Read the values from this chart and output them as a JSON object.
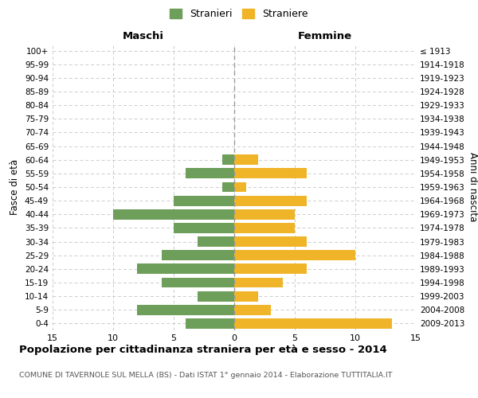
{
  "age_groups": [
    "100+",
    "95-99",
    "90-94",
    "85-89",
    "80-84",
    "75-79",
    "70-74",
    "65-69",
    "60-64",
    "55-59",
    "50-54",
    "45-49",
    "40-44",
    "35-39",
    "30-34",
    "25-29",
    "20-24",
    "15-19",
    "10-14",
    "5-9",
    "0-4"
  ],
  "birth_years": [
    "≤ 1913",
    "1914-1918",
    "1919-1923",
    "1924-1928",
    "1929-1933",
    "1934-1938",
    "1939-1943",
    "1944-1948",
    "1949-1953",
    "1954-1958",
    "1959-1963",
    "1964-1968",
    "1969-1973",
    "1974-1978",
    "1979-1983",
    "1984-1988",
    "1989-1993",
    "1994-1998",
    "1999-2003",
    "2004-2008",
    "2009-2013"
  ],
  "maschi": [
    0,
    0,
    0,
    0,
    0,
    0,
    0,
    0,
    1,
    4,
    1,
    5,
    10,
    5,
    3,
    6,
    8,
    6,
    3,
    8,
    4
  ],
  "femmine": [
    0,
    0,
    0,
    0,
    0,
    0,
    0,
    0,
    2,
    6,
    1,
    6,
    5,
    5,
    6,
    10,
    6,
    4,
    2,
    3,
    13
  ],
  "xlim": 15,
  "color_maschi": "#6d9e5a",
  "color_femmine": "#f0b429",
  "title": "Popolazione per cittadinanza straniera per età e sesso - 2014",
  "subtitle": "COMUNE DI TAVERNOLE SUL MELLA (BS) - Dati ISTAT 1° gennaio 2014 - Elaborazione TUTTITALIA.IT",
  "legend_maschi": "Stranieri",
  "legend_femmine": "Straniere",
  "xlabel_left": "Maschi",
  "xlabel_right": "Femmine",
  "ylabel_left": "Fasce di età",
  "ylabel_right": "Anni di nascita",
  "background_color": "#ffffff",
  "grid_color": "#cccccc",
  "bar_height": 0.75
}
